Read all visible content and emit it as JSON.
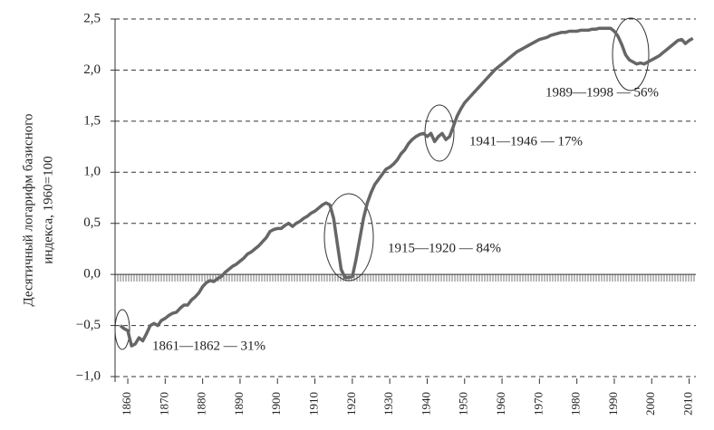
{
  "chart_data": {
    "type": "line",
    "ylabel": [
      "Десятичный логарифм базисного",
      "индекса, 1960=100"
    ],
    "annotations": [
      "1861—1862 — 31%",
      "1915—1920 — 84%",
      "1941—1946 — 17%",
      "1989—1998 — 56%"
    ],
    "xlim": [
      1856.6,
      2011.8
    ],
    "ylim": [
      -1.0,
      2.5
    ],
    "xticks": [
      1860,
      1870,
      1880,
      1890,
      1900,
      1910,
      1920,
      1930,
      1940,
      1950,
      1960,
      1970,
      1980,
      1990,
      2000,
      2010
    ],
    "yticks": [
      {
        "value": -1.0,
        "label": "−1,0"
      },
      {
        "value": -0.5,
        "label": "−0,5"
      },
      {
        "value": 0,
        "label": "0,0"
      },
      {
        "value": 0.5,
        "label": "0,5"
      },
      {
        "value": 1.0,
        "label": "1,0"
      },
      {
        "value": 1.5,
        "label": "1,5"
      },
      {
        "value": 2.0,
        "label": "2,0"
      },
      {
        "value": 2.5,
        "label": "2,5"
      }
    ],
    "grid": true,
    "color": "#666666",
    "x": [
      1858,
      1859,
      1860,
      1861,
      1862,
      1863,
      1864,
      1865,
      1866,
      1867,
      1868,
      1869,
      1870,
      1871,
      1872,
      1873,
      1874,
      1875,
      1876,
      1877,
      1878,
      1879,
      1880,
      1881,
      1882,
      1883,
      1884,
      1885,
      1886,
      1887,
      1888,
      1889,
      1890,
      1891,
      1892,
      1893,
      1894,
      1895,
      1896,
      1897,
      1898,
      1899,
      1900,
      1901,
      1902,
      1903,
      1904,
      1905,
      1906,
      1907,
      1908,
      1909,
      1910,
      1911,
      1912,
      1913,
      1914,
      1915,
      1916,
      1917,
      1918,
      1919,
      1920,
      1921,
      1922,
      1923,
      1924,
      1925,
      1926,
      1927,
      1928,
      1929,
      1930,
      1931,
      1932,
      1933,
      1934,
      1935,
      1936,
      1937,
      1938,
      1939,
      1940,
      1941,
      1942,
      1943,
      1944,
      1945,
      1946,
      1947,
      1948,
      1949,
      1950,
      1951,
      1952,
      1953,
      1954,
      1955,
      1956,
      1957,
      1958,
      1959,
      1960,
      1961,
      1962,
      1963,
      1964,
      1965,
      1966,
      1967,
      1968,
      1969,
      1970,
      1971,
      1972,
      1973,
      1974,
      1975,
      1976,
      1977,
      1978,
      1979,
      1980,
      1981,
      1982,
      1983,
      1984,
      1985,
      1986,
      1987,
      1988,
      1989,
      1990,
      1991,
      1992,
      1993,
      1994,
      1995,
      1996,
      1997,
      1998,
      1999,
      2000,
      2001,
      2002,
      2003,
      2004,
      2005,
      2006,
      2007,
      2008,
      2009,
      2010,
      2011
    ],
    "values": [
      -0.5,
      -0.53,
      -0.55,
      -0.7,
      -0.68,
      -0.62,
      -0.65,
      -0.58,
      -0.5,
      -0.48,
      -0.5,
      -0.45,
      -0.43,
      -0.4,
      -0.38,
      -0.37,
      -0.33,
      -0.3,
      -0.3,
      -0.25,
      -0.22,
      -0.18,
      -0.12,
      -0.08,
      -0.06,
      -0.07,
      -0.04,
      -0.02,
      0.02,
      0.05,
      0.08,
      0.1,
      0.13,
      0.16,
      0.2,
      0.22,
      0.25,
      0.28,
      0.32,
      0.36,
      0.42,
      0.44,
      0.45,
      0.45,
      0.48,
      0.5,
      0.47,
      0.5,
      0.52,
      0.55,
      0.57,
      0.6,
      0.62,
      0.65,
      0.68,
      0.7,
      0.68,
      0.55,
      0.3,
      0.05,
      -0.03,
      -0.03,
      -0.02,
      0.15,
      0.35,
      0.55,
      0.7,
      0.8,
      0.88,
      0.93,
      0.98,
      1.03,
      1.05,
      1.08,
      1.12,
      1.18,
      1.22,
      1.28,
      1.32,
      1.35,
      1.37,
      1.38,
      1.35,
      1.38,
      1.3,
      1.35,
      1.38,
      1.32,
      1.35,
      1.45,
      1.55,
      1.62,
      1.68,
      1.72,
      1.76,
      1.8,
      1.84,
      1.88,
      1.92,
      1.96,
      2.0,
      2.03,
      2.06,
      2.09,
      2.12,
      2.15,
      2.18,
      2.2,
      2.22,
      2.24,
      2.26,
      2.28,
      2.3,
      2.31,
      2.32,
      2.34,
      2.35,
      2.36,
      2.37,
      2.37,
      2.38,
      2.38,
      2.38,
      2.39,
      2.39,
      2.39,
      2.4,
      2.4,
      2.41,
      2.41,
      2.41,
      2.41,
      2.38,
      2.33,
      2.25,
      2.15,
      2.1,
      2.08,
      2.06,
      2.07,
      2.06,
      2.08,
      2.1,
      2.12,
      2.14,
      2.17,
      2.2,
      2.23,
      2.26,
      2.29,
      2.3,
      2.26,
      2.29,
      2.31
    ]
  }
}
